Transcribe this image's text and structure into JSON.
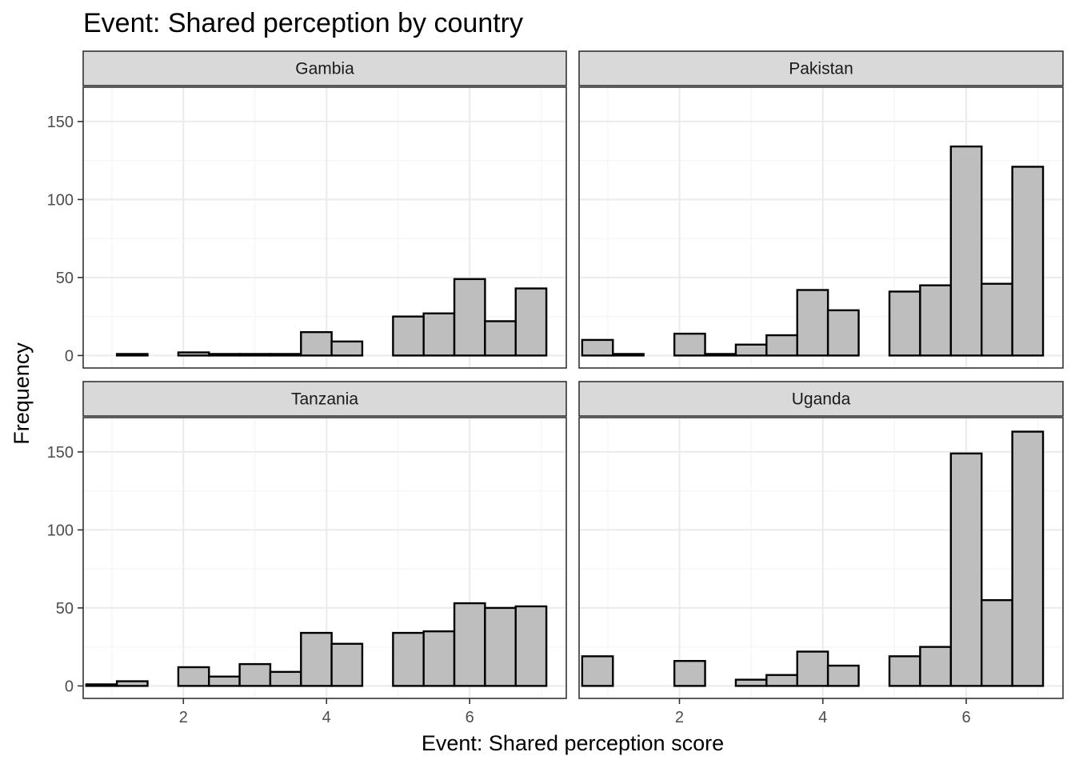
{
  "chart_data": {
    "type": "bar",
    "title": "Event: Shared perception by country",
    "xlabel": "Event: Shared perception score",
    "ylabel": "Frequency",
    "xlim": [
      0.6,
      7.35
    ],
    "ylim": [
      -8,
      172
    ],
    "x_ticks": [
      2,
      4,
      6
    ],
    "y_ticks": [
      0,
      50,
      100,
      150
    ],
    "bin_width": 0.4286,
    "bin_lefts": [
      0.643,
      1.071,
      1.5,
      1.929,
      2.357,
      2.786,
      3.214,
      3.643,
      4.071,
      4.5,
      4.929,
      5.357,
      5.786,
      6.214,
      6.643
    ],
    "grid": true,
    "panels": [
      {
        "name": "Gambia",
        "values": [
          0,
          1,
          0,
          2,
          1,
          1,
          1,
          15,
          9,
          0,
          25,
          27,
          49,
          22,
          43
        ]
      },
      {
        "name": "Pakistan",
        "values": [
          10,
          1,
          0,
          14,
          1,
          7,
          13,
          42,
          29,
          0,
          41,
          45,
          134,
          46,
          121
        ]
      },
      {
        "name": "Tanzania",
        "values": [
          1,
          3,
          0,
          12,
          6,
          14,
          9,
          34,
          27,
          0,
          34,
          35,
          53,
          50,
          51
        ]
      },
      {
        "name": "Uganda",
        "values": [
          19,
          0,
          0,
          16,
          0,
          4,
          7,
          22,
          13,
          0,
          19,
          25,
          149,
          55,
          163
        ]
      }
    ]
  },
  "colors": {
    "bar_fill": "#bebebe",
    "bar_stroke": "#000000",
    "strip_fill": "#d9d9d9",
    "strip_stroke": "#333333",
    "panel_border": "#333333",
    "grid_major": "#ebebeb",
    "grid_minor": "#f5f5f5",
    "tick_color": "#333333"
  }
}
